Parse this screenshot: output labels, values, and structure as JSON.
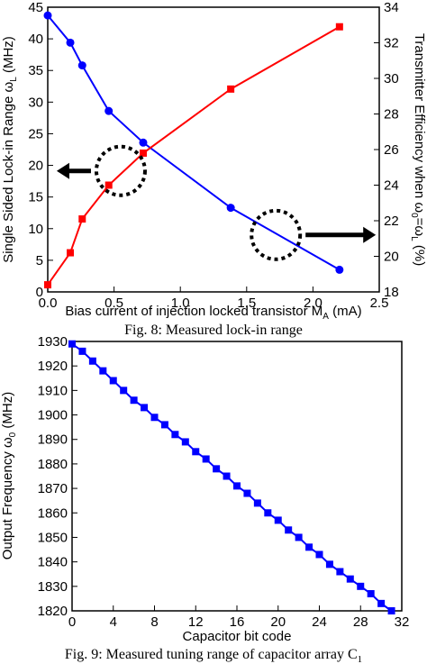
{
  "captions": {
    "fig8": "Fig. 8: Measured lock-in range",
    "fig9_main": "Fig. 9: Measured tuning range of capacitor array C",
    "fig9_sub": "1"
  },
  "chart_data": [
    {
      "type": "line",
      "xlabel": "Bias current of injection locked transistor M",
      "xlabel_sub": "A",
      "xlabel_tail": " (mA)",
      "ylabel_left": "Single Sided Lock-in Range ω",
      "ylabel_left_sub": "L",
      "ylabel_left_tail": " (MHz)",
      "ylabel_right": "Transmitter Efficiency when ω",
      "ylabel_right_sub1": "0",
      "ylabel_right_mid": "=ω",
      "ylabel_right_sub2": "L",
      "ylabel_right_tail": " (%)",
      "xlim": [
        0,
        2.5
      ],
      "ylim_left": [
        0,
        45
      ],
      "ylim_right": [
        18,
        34
      ],
      "x_ticks": [
        "0.0",
        "0.5",
        "1.0",
        "1.5",
        "2.0",
        "2.5"
      ],
      "y_left_ticks": [
        "0",
        "5",
        "10",
        "15",
        "20",
        "25",
        "30",
        "35",
        "40",
        "45"
      ],
      "y_right_ticks": [
        "18",
        "20",
        "22",
        "24",
        "26",
        "28",
        "30",
        "32",
        "34"
      ],
      "series": [
        {
          "axis": "left",
          "color": "#0000ff",
          "marker": "circle",
          "points": [
            [
              0.0,
              43.7
            ],
            [
              0.17,
              39.4
            ],
            [
              0.26,
              35.8
            ],
            [
              0.46,
              28.6
            ],
            [
              0.72,
              23.6
            ],
            [
              1.38,
              13.3
            ],
            [
              2.2,
              3.5
            ]
          ]
        },
        {
          "axis": "right",
          "color": "#ff0000",
          "marker": "square",
          "points": [
            [
              0.0,
              18.4
            ],
            [
              0.17,
              20.2
            ],
            [
              0.26,
              22.1
            ],
            [
              0.46,
              24.0
            ],
            [
              0.72,
              25.8
            ],
            [
              1.38,
              29.4
            ],
            [
              2.2,
              32.9
            ]
          ]
        }
      ],
      "annotations": [
        {
          "shape": "dotted-circle",
          "at": [
            0.55,
            24.8
          ],
          "axis": "right",
          "arrow": "left"
        },
        {
          "shape": "dotted-circle",
          "at": [
            1.72,
            21.2
          ],
          "axis": "right",
          "arrow": "right"
        }
      ],
      "grid": false
    },
    {
      "type": "line",
      "xlabel": "Capacitor bit code",
      "ylabel": "Output Frequency ω",
      "ylabel_sub": "0",
      "ylabel_tail": " (MHz)",
      "xlim": [
        0,
        32
      ],
      "ylim": [
        1820,
        1930
      ],
      "x_ticks": [
        "0",
        "4",
        "8",
        "12",
        "16",
        "20",
        "24",
        "28",
        "32"
      ],
      "y_ticks": [
        "1820",
        "1830",
        "1840",
        "1850",
        "1860",
        "1870",
        "1880",
        "1890",
        "1900",
        "1910",
        "1920",
        "1930"
      ],
      "series": [
        {
          "color": "#0000ff",
          "marker": "square",
          "x": [
            0,
            1,
            2,
            3,
            4,
            5,
            6,
            7,
            8,
            9,
            10,
            11,
            12,
            13,
            14,
            15,
            16,
            17,
            18,
            19,
            20,
            21,
            22,
            23,
            24,
            25,
            26,
            27,
            28,
            29,
            30,
            31
          ],
          "y": [
            1929,
            1926,
            1922,
            1918,
            1914,
            1910,
            1906,
            1903,
            1899,
            1896,
            1892,
            1889,
            1885,
            1882,
            1878,
            1875,
            1871,
            1868,
            1864,
            1860,
            1857,
            1853,
            1850,
            1846,
            1843,
            1839,
            1836,
            1833,
            1830,
            1827,
            1823,
            1820
          ]
        }
      ],
      "grid": false
    }
  ]
}
